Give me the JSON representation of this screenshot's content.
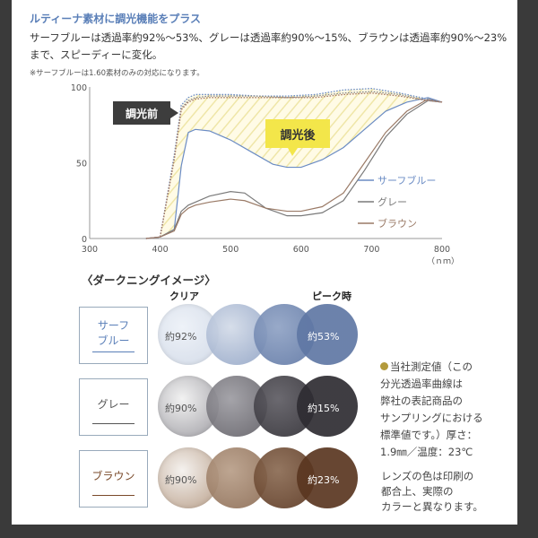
{
  "header": {
    "title": "ルティーナ素材に調光機能をプラス",
    "desc_line1": "サーフブルーは透過率約92%〜53%、グレーは透過率約90%〜15%、ブラウンは透過率約90%〜23%",
    "desc_line2": "まで、スピーディーに変化。",
    "note": "※サーフブルーは1.60素材のみの対応になります。"
  },
  "chart_data": {
    "type": "line",
    "x_unit": "（ｎｍ）",
    "xlim": [
      300,
      800
    ],
    "ylim": [
      0,
      100
    ],
    "x_ticks": [
      "300",
      "400",
      "500",
      "600",
      "700",
      "800"
    ],
    "y_ticks": [
      "0",
      "50",
      "100"
    ],
    "before_label": "調光前",
    "after_label": "調光後",
    "grid": false,
    "legend_position": "right",
    "series": [
      {
        "name": "サーフブルー",
        "color": "#6b8cc4",
        "state": "after",
        "x": [
          380,
          400,
          420,
          430,
          440,
          450,
          470,
          500,
          530,
          560,
          580,
          600,
          630,
          660,
          690,
          720,
          750,
          780,
          800
        ],
        "y": [
          0,
          1,
          6,
          48,
          70,
          72,
          71,
          65,
          57,
          49,
          47,
          47,
          52,
          60,
          72,
          84,
          90,
          93,
          90
        ]
      },
      {
        "name": "グレー",
        "color": "#7a7a7a",
        "state": "after",
        "x": [
          380,
          400,
          420,
          430,
          440,
          450,
          470,
          500,
          520,
          550,
          580,
          600,
          630,
          660,
          690,
          720,
          750,
          780,
          800
        ],
        "y": [
          0,
          1,
          6,
          18,
          22,
          24,
          28,
          31,
          30,
          20,
          15,
          15,
          17,
          25,
          45,
          67,
          82,
          91,
          90
        ]
      },
      {
        "name": "ブラウン",
        "color": "#9a7a66",
        "state": "after",
        "x": [
          380,
          400,
          420,
          430,
          440,
          450,
          470,
          500,
          520,
          550,
          580,
          600,
          630,
          660,
          690,
          720,
          750,
          780,
          800
        ],
        "y": [
          0,
          1,
          5,
          16,
          20,
          22,
          24,
          26,
          25,
          20,
          18,
          18,
          21,
          30,
          50,
          70,
          84,
          92,
          90
        ]
      },
      {
        "name": "サーフブルー",
        "color": "#6b8cc4",
        "state": "before",
        "x": [
          380,
          400,
          420,
          430,
          440,
          450,
          470,
          500,
          540,
          580,
          620,
          660,
          700,
          740,
          780,
          800
        ],
        "y": [
          0,
          1,
          55,
          88,
          93,
          95,
          95,
          95,
          94,
          94,
          95,
          98,
          99,
          96,
          92,
          90
        ]
      },
      {
        "name": "グレー",
        "color": "#8a8a8a",
        "state": "before",
        "x": [
          380,
          400,
          420,
          430,
          440,
          450,
          470,
          500,
          540,
          580,
          620,
          660,
          700,
          740,
          780,
          800
        ],
        "y": [
          0,
          1,
          53,
          86,
          91,
          93,
          94,
          94,
          94,
          93,
          94,
          96,
          97,
          95,
          91,
          90
        ]
      },
      {
        "name": "ブラウン",
        "color": "#a87a66",
        "state": "before",
        "x": [
          380,
          400,
          420,
          430,
          440,
          450,
          470,
          500,
          540,
          580,
          620,
          660,
          700,
          740,
          780,
          800
        ],
        "y": [
          0,
          1,
          52,
          85,
          90,
          92,
          93,
          93,
          93,
          93,
          93,
          95,
          96,
          94,
          91,
          90
        ]
      }
    ]
  },
  "darkening": {
    "title": "〈ダークニングイメージ〉",
    "clear_label": "クリア",
    "peak_label": "ピーク時",
    "rows": [
      {
        "label_line1": "サーフ",
        "label_line2": "ブルー",
        "label_color": "#5a7fb8",
        "clear_pct": "約92%",
        "peak_pct": "約53%",
        "colors": [
          "#eef2f8",
          "#d3dbe8",
          "#8fa2c4",
          "#5f77a4"
        ]
      },
      {
        "label_line1": "グレー",
        "label_line2": "",
        "label_color": "#555555",
        "clear_pct": "約90%",
        "peak_pct": "約15%",
        "colors": [
          "#f2f2f2",
          "#9d9ca2",
          "#5e5c63",
          "#2e2c32"
        ]
      },
      {
        "label_line1": "ブラウン",
        "label_line2": "",
        "label_color": "#7a4a2a",
        "clear_pct": "約90%",
        "peak_pct": "約23%",
        "colors": [
          "#f5f2ef",
          "#b89e88",
          "#8a6a52",
          "#5a3620"
        ]
      }
    ]
  },
  "notes": {
    "measured": [
      "当社測定値（この",
      "分光透過率曲線は",
      "弊社の表記商品の",
      "サンプリングにおける",
      "標準値です。）厚さ：",
      "1.9㎜／温度：23℃"
    ],
    "lens_color": [
      "レンズの色は印刷の",
      "都合上、実際の",
      "カラーと異なります。"
    ]
  }
}
